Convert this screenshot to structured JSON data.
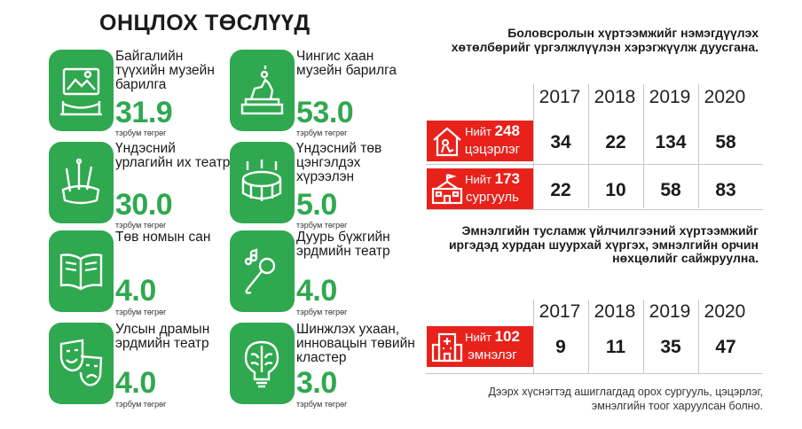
{
  "title": "ОНЦЛОХ ТӨСЛҮҮД",
  "colors": {
    "green": "#2fa84f",
    "red": "#e8211b"
  },
  "projects": [
    {
      "icon": "museum-frame-icon",
      "label": "Байгалийн түүхийн музейн барилга",
      "value": "31.9",
      "unit": "тэрбум төгрөг"
    },
    {
      "icon": "statue-icon",
      "label": "Чингис хаан музейн барилга",
      "value": "53.0",
      "unit": "тэрбум төгрөг"
    },
    {
      "icon": "art-brushes-icon",
      "label": "Үндэсний урлагийн их театр",
      "value": "30.0",
      "unit": "тэрбум төгрөг"
    },
    {
      "icon": "stadium-icon",
      "label": "Үндэсний төв цэнгэлдэх хүрээлэн",
      "value": "5.0",
      "unit": "тэрбум төгрөг"
    },
    {
      "icon": "open-book-icon",
      "label": "Төв номын сан",
      "value": "4.0",
      "unit": "тэрбум төгрөг"
    },
    {
      "icon": "microphone-icon",
      "label": "Дуурь бүжгийн эрдмийн театр",
      "value": "4.0",
      "unit": "тэрбум төгрөг"
    },
    {
      "icon": "theatre-masks-icon",
      "label": "Улсын драмын эрдмийн театр",
      "value": "4.0",
      "unit": "тэрбум төгрөг"
    },
    {
      "icon": "brain-bulb-icon",
      "label": "Шинжлэх ухаан, инновацын төвийн кластер",
      "value": "3.0",
      "unit": "тэрбум төгрөг"
    }
  ],
  "education": {
    "heading": "Боловсролын хүртээмжийг нэмэгдүүлэх хөтөлбөрийг үргэлжлүүлэн хэрэгжүүлж дуусгана.",
    "years": [
      "2017",
      "2018",
      "2019",
      "2020"
    ],
    "rows": [
      {
        "icon": "kindergarten-icon",
        "prefix": "Нийт",
        "total": "248",
        "label": "цэцэрлэг",
        "values": [
          "34",
          "22",
          "134",
          "58"
        ]
      },
      {
        "icon": "school-icon",
        "prefix": "Нийт",
        "total": "173",
        "label": "сургууль",
        "values": [
          "22",
          "10",
          "58",
          "83"
        ]
      }
    ]
  },
  "health": {
    "heading": "Эмнэлгийн тусламж үйлчилгээний хүртээмжийг иргэдэд хурдан шуурхай хүргэх, эмнэлгийн орчин нөхцөлийг сайжруулна.",
    "years": [
      "2017",
      "2018",
      "2019",
      "2020"
    ],
    "rows": [
      {
        "icon": "hospital-icon",
        "prefix": "Нийт",
        "total": "102",
        "label": "эмнэлэг",
        "values": [
          "9",
          "11",
          "35",
          "47"
        ]
      }
    ]
  },
  "footnote": "Дээрх хүснэгтэд ашиглагдад орох сургууль, цэцэрлэг, эмнэлгийн тоог харуулсан болно."
}
